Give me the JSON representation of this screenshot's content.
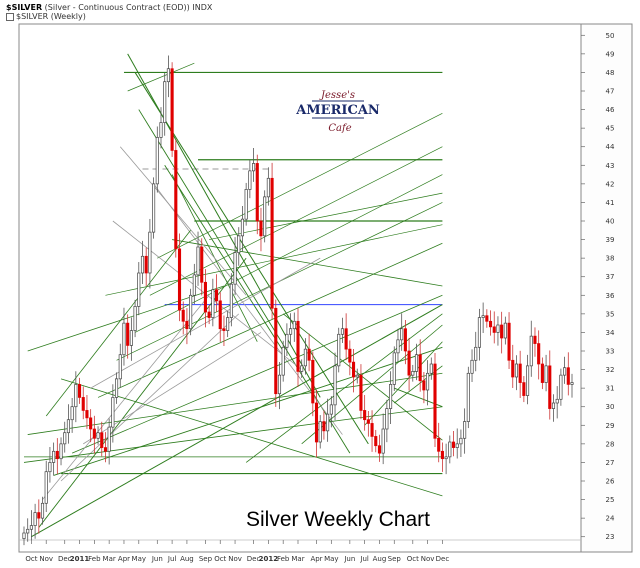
{
  "header": {
    "symbol": "$SILVER",
    "description": "(Silver - Continuous Contract (EOD))",
    "exchange": "INDX",
    "legend": "$SILVER (Weekly)"
  },
  "logo": {
    "line1": "Jesse's",
    "line2": "AMERICAN",
    "line3": "Cafe"
  },
  "caption": "Silver Weekly Chart",
  "colors": {
    "up": "#ffffff",
    "down": "#e00000",
    "wick": "#555555",
    "trend": "#2e7d1e",
    "dashed": "#9a9a9a",
    "resistance": "#3344ff",
    "border": "#888888"
  },
  "chart_data": {
    "type": "candlestick",
    "ylim": [
      22.5,
      50.5
    ],
    "yticks": [
      23,
      24,
      25,
      26,
      27,
      28,
      29,
      30,
      31,
      32,
      33,
      34,
      35,
      36,
      37,
      38,
      39,
      40,
      41,
      42,
      43,
      44,
      45,
      46,
      47,
      48,
      49,
      50
    ],
    "xticks": [
      {
        "label": "Oct",
        "i": 2
      },
      {
        "label": "Nov",
        "i": 6
      },
      {
        "label": "Dec",
        "i": 11
      },
      {
        "label": "2011",
        "i": 15,
        "bold": true
      },
      {
        "label": "Feb",
        "i": 19
      },
      {
        "label": "Mar",
        "i": 23
      },
      {
        "label": "Apr",
        "i": 27
      },
      {
        "label": "May",
        "i": 31
      },
      {
        "label": "Jun",
        "i": 36
      },
      {
        "label": "Jul",
        "i": 40
      },
      {
        "label": "Aug",
        "i": 44
      },
      {
        "label": "Sep",
        "i": 49
      },
      {
        "label": "Oct",
        "i": 53
      },
      {
        "label": "Nov",
        "i": 57
      },
      {
        "label": "Dec",
        "i": 62
      },
      {
        "label": "2012",
        "i": 66,
        "bold": true
      },
      {
        "label": "Feb",
        "i": 70
      },
      {
        "label": "Mar",
        "i": 74
      },
      {
        "label": "Apr",
        "i": 79
      },
      {
        "label": "May",
        "i": 83
      },
      {
        "label": "Jun",
        "i": 88
      },
      {
        "label": "Jul",
        "i": 92
      },
      {
        "label": "Aug",
        "i": 96
      },
      {
        "label": "Sep",
        "i": 100
      },
      {
        "label": "Oct",
        "i": 105
      },
      {
        "label": "Nov",
        "i": 109
      },
      {
        "label": "Dec",
        "i": 113
      }
    ],
    "closes": [
      23.2,
      23.4,
      23.6,
      24.3,
      24.0,
      24.8,
      26.5,
      27.0,
      27.6,
      27.2,
      28.0,
      28.6,
      29.3,
      30.0,
      31.2,
      30.5,
      29.8,
      29.4,
      28.8,
      28.3,
      28.6,
      27.8,
      27.6,
      28.9,
      30.5,
      31.5,
      32.8,
      34.5,
      33.3,
      34.1,
      35.4,
      37.2,
      38.1,
      37.2,
      39.4,
      42.0,
      44.5,
      45.3,
      47.5,
      48.2,
      43.8,
      38.5,
      35.2,
      34.6,
      34.2,
      36.0,
      37.1,
      38.6,
      36.7,
      35.1,
      34.8,
      36.3,
      35.7,
      34.2,
      34.1,
      34.8,
      36.6,
      38.3,
      39.2,
      40.1,
      41.7,
      42.7,
      43.1,
      40.0,
      39.2,
      41.3,
      42.3,
      35.3,
      30.7,
      31.7,
      33.2,
      33.9,
      34.2,
      34.6,
      31.9,
      32.2,
      33.1,
      32.5,
      30.2,
      28.1,
      29.2,
      28.7,
      29.6,
      30.1,
      32.2,
      33.9,
      34.2,
      33.1,
      32.4,
      31.6,
      31.7,
      29.8,
      29.3,
      29.1,
      28.4,
      27.9,
      27.5,
      28.8,
      29.9,
      31.2,
      32.9,
      33.6,
      34.2,
      33.0,
      31.7,
      31.9,
      32.8,
      31.4,
      30.9,
      31.8,
      32.3,
      28.3,
      27.6,
      27.2,
      27.3,
      28.1,
      27.8,
      28.0,
      28.3,
      29.2,
      31.8,
      32.5,
      33.2,
      34.8,
      34.9,
      34.6,
      34.3,
      34.0,
      34.4,
      33.7,
      34.5,
      32.5,
      31.6,
      32.3,
      31.3,
      30.6,
      32.2,
      33.8,
      33.4,
      32.3,
      31.3,
      32.2,
      29.9,
      30.2,
      30.4,
      31.7,
      32.1,
      31.2,
      31.3
    ]
  }
}
